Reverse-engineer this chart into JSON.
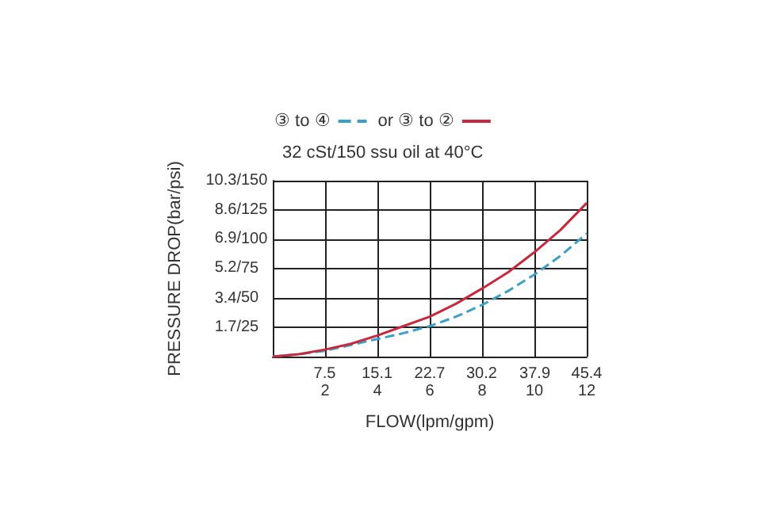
{
  "chart_data": {
    "type": "line",
    "subtitle": "32 cSt/150 ssu oil at 40°C",
    "xlabel": "FLOW(lpm/gpm)",
    "ylabel": "PRESSURE DROP(bar/psi)",
    "x": [
      0,
      1,
      2,
      3,
      4,
      5,
      6,
      7,
      8,
      9,
      10,
      11,
      12
    ],
    "series": [
      {
        "name": "③ to ④",
        "color": "#3aa0c8",
        "line_style": "dashed",
        "axis": "y2",
        "values": [
          0,
          2,
          5,
          10,
          15,
          20,
          26,
          34,
          44,
          56,
          70,
          86,
          105
        ]
      },
      {
        "name": "or ③ to ②",
        "color": "#c8283c",
        "line_style": "solid",
        "axis": "y2",
        "values": [
          0,
          2,
          6,
          11,
          18,
          26,
          34,
          45,
          58,
          72,
          89,
          108,
          131
        ]
      }
    ],
    "xlim": [
      0,
      12
    ],
    "xticks": [
      2,
      4,
      6,
      8,
      10,
      12
    ],
    "x2lim": [
      0,
      45.4
    ],
    "x2ticks": [
      7.5,
      15.1,
      22.7,
      30.2,
      37.9,
      45.4
    ],
    "ylim": [
      0,
      10.3
    ],
    "yticks": [
      {
        "value": 1.7,
        "label": "1.7/"
      },
      {
        "value": 3.4,
        "label": "3.4/"
      },
      {
        "value": 5.2,
        "label": "5.2/"
      },
      {
        "value": 6.9,
        "label": "6.9/"
      },
      {
        "value": 8.6,
        "label": "8.6/"
      },
      {
        "value": 10.3,
        "label": "10.3/"
      }
    ],
    "y2lim": [
      0,
      150
    ],
    "y2ticks": [
      25,
      50,
      75,
      100,
      125,
      150
    ],
    "grid": true,
    "legend": "top",
    "marker": "none"
  }
}
